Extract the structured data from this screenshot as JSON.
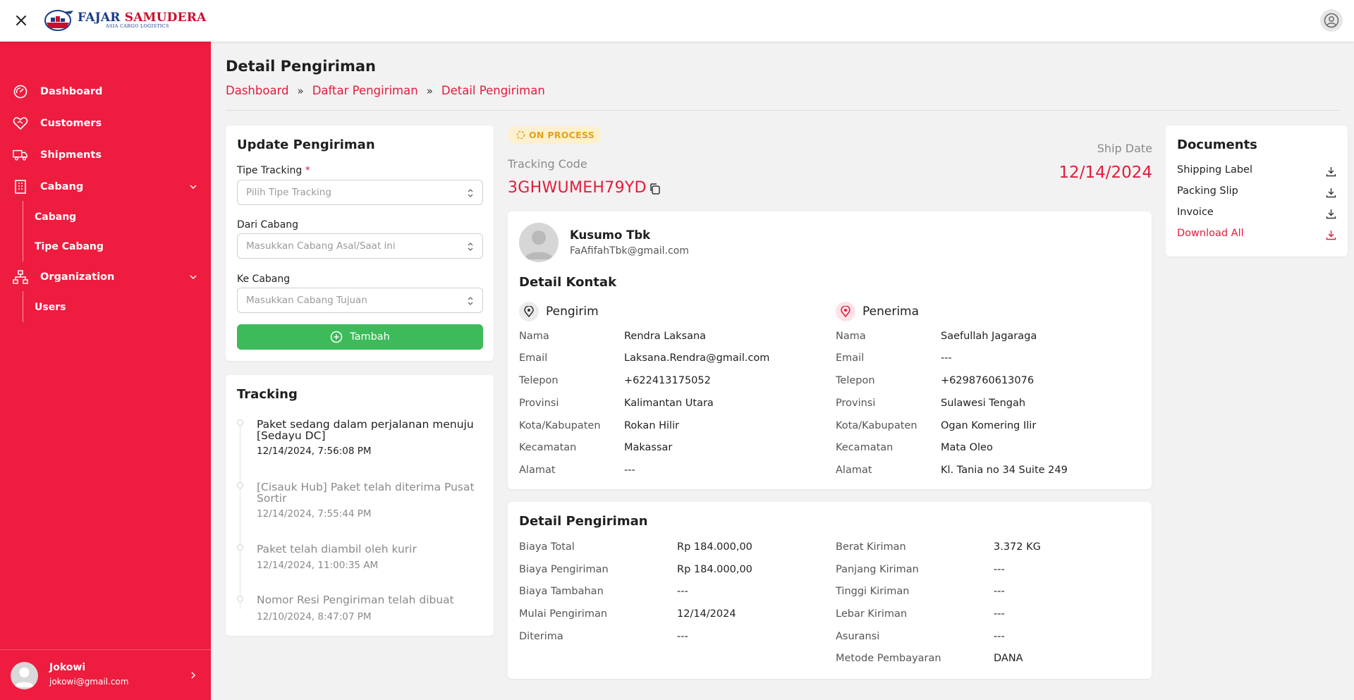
{
  "brand": {
    "name_part1": "FAJAR",
    "name_part2": "SAMUDERA",
    "tagline": "ASIA CARGO LOGISTICS"
  },
  "sidebar": {
    "items": [
      {
        "label": "Dashboard",
        "icon": "gauge-icon"
      },
      {
        "label": "Customers",
        "icon": "heart-handshake-icon"
      },
      {
        "label": "Shipments",
        "icon": "truck-icon"
      },
      {
        "label": "Cabang",
        "icon": "building-icon",
        "expanded": true,
        "children": [
          "Cabang",
          "Tipe Cabang"
        ]
      },
      {
        "label": "Organization",
        "icon": "org-chart-icon",
        "expanded": true,
        "children": [
          "Users"
        ]
      }
    ],
    "user": {
      "name": "Jokowi",
      "email": "jokowi@gmail.com"
    }
  },
  "page": {
    "title": "Detail Pengiriman",
    "breadcrumb": [
      "Dashboard",
      "Daftar Pengiriman",
      "Detail Pengiriman"
    ],
    "breadcrumb_sep": "»"
  },
  "update_form": {
    "title": "Update Pengiriman",
    "tipe_tracking": {
      "label": "Tipe Tracking",
      "required_mark": "*",
      "placeholder": "Pilih Tipe Tracking"
    },
    "dari_cabang": {
      "label": "Dari Cabang",
      "placeholder": "Masukkan Cabang Asal/Saat ini"
    },
    "ke_cabang": {
      "label": "Ke Cabang",
      "placeholder": "Masukkan Cabang Tujuan"
    },
    "submit_label": "Tambah"
  },
  "tracking": {
    "title": "Tracking",
    "events": [
      {
        "text": "Paket sedang dalam perjalanan menuju [Sedayu DC]",
        "time": "12/14/2024, 7:56:08 PM",
        "active": true
      },
      {
        "text": "[Cisauk Hub] Paket telah diterima Pusat Sortir",
        "time": "12/14/2024, 7:55:44 PM",
        "active": false
      },
      {
        "text": "Paket telah diambil oleh kurir",
        "time": "12/14/2024, 11:00:35 AM",
        "active": false
      },
      {
        "text": "Nomor Resi Pengiriman telah dibuat",
        "time": "12/10/2024, 8:47:07 PM",
        "active": false
      }
    ]
  },
  "shipment": {
    "status": "ON PROCESS",
    "tracking_label": "Tracking Code",
    "tracking_code": "3GHWUMEH79YD",
    "ship_date_label": "Ship Date",
    "ship_date": "12/14/2024"
  },
  "customer": {
    "name": "Kusumo Tbk",
    "email": "FaAfifahTbk@gmail.com"
  },
  "detail_kontak": {
    "title": "Detail Kontak",
    "pengirim": {
      "title": "Pengirim",
      "rows": [
        {
          "k": "Nama",
          "v": "Rendra Laksana"
        },
        {
          "k": "Email",
          "v": "Laksana.Rendra@gmail.com"
        },
        {
          "k": "Telepon",
          "v": "+622413175052"
        },
        {
          "k": "Provinsi",
          "v": "Kalimantan Utara"
        },
        {
          "k": "Kota/Kabupaten",
          "v": "Rokan Hilir"
        },
        {
          "k": "Kecamatan",
          "v": "Makassar"
        },
        {
          "k": "Alamat",
          "v": "---"
        }
      ]
    },
    "penerima": {
      "title": "Penerima",
      "rows": [
        {
          "k": "Nama",
          "v": "Saefullah Jagaraga"
        },
        {
          "k": "Email",
          "v": "---"
        },
        {
          "k": "Telepon",
          "v": "+6298760613076"
        },
        {
          "k": "Provinsi",
          "v": "Sulawesi Tengah"
        },
        {
          "k": "Kota/Kabupaten",
          "v": "Ogan Komering Ilir"
        },
        {
          "k": "Kecamatan",
          "v": "Mata Oleo"
        },
        {
          "k": "Alamat",
          "v": "Kl. Tania no 34 Suite 249"
        }
      ]
    }
  },
  "detail_pengiriman": {
    "title": "Detail Pengiriman",
    "left": [
      {
        "k": "Biaya Total",
        "v": "Rp 184.000,00"
      },
      {
        "k": "Biaya Pengiriman",
        "v": "Rp 184.000,00"
      },
      {
        "k": "Biaya Tambahan",
        "v": "---"
      },
      {
        "k": "Mulai Pengiriman",
        "v": "12/14/2024"
      },
      {
        "k": "Diterima",
        "v": "---"
      }
    ],
    "right": [
      {
        "k": "Berat Kiriman",
        "v": "3.372 KG"
      },
      {
        "k": "Panjang Kiriman",
        "v": "---"
      },
      {
        "k": "Tinggi Kiriman",
        "v": "---"
      },
      {
        "k": "Lebar Kiriman",
        "v": "---"
      },
      {
        "k": "Asuransi",
        "v": "---"
      },
      {
        "k": "Metode Pembayaran",
        "v": "DANA"
      }
    ]
  },
  "documents": {
    "title": "Documents",
    "items": [
      "Shipping Label",
      "Packing Slip",
      "Invoice",
      "Download All"
    ]
  },
  "colors": {
    "brand_red": "#ee1c3f",
    "accent_red": "#e31b3b",
    "success_green": "#3dba5a",
    "status_bg": "#fdf0cf",
    "status_fg": "#e0a21a"
  }
}
